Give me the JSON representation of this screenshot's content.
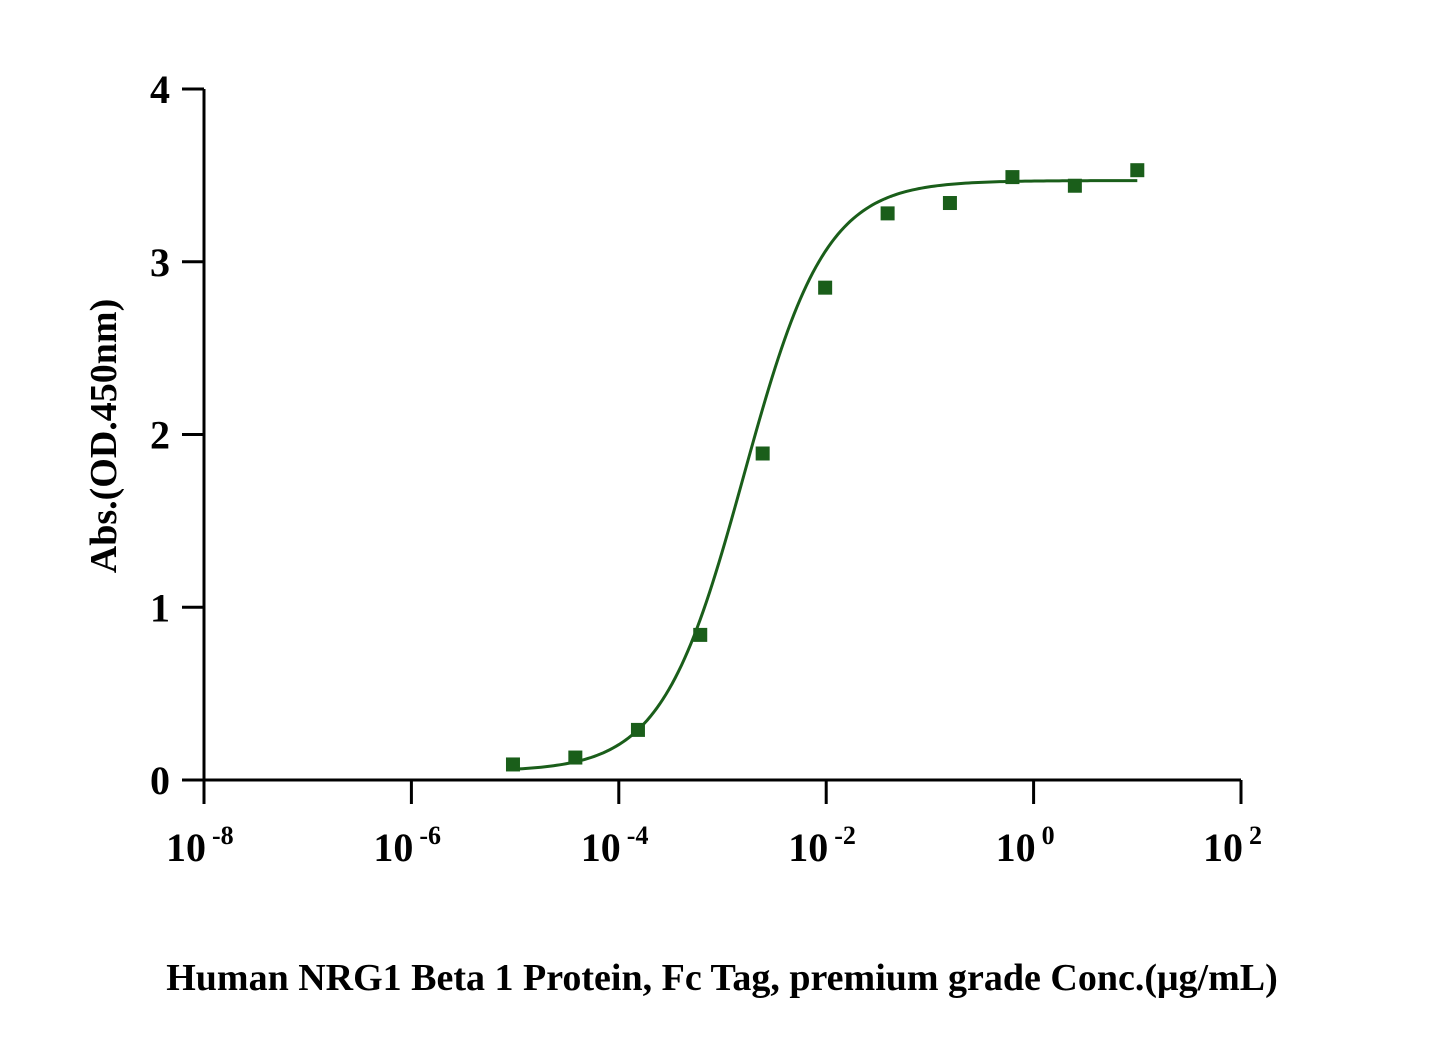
{
  "chart_data": {
    "type": "scatter",
    "title": "",
    "xlabel": "Human NRG1 Beta 1 Protein, Fc Tag, premium grade Conc.(μg/mL)",
    "ylabel": "Abs.(OD.450nm)",
    "x_scale": "log10",
    "xlim": [
      1e-08,
      100
    ],
    "ylim": [
      0,
      4
    ],
    "grid": false,
    "legend": "none",
    "x_ticks": [
      {
        "base": "10",
        "exp": "-8"
      },
      {
        "base": "10",
        "exp": "-6"
      },
      {
        "base": "10",
        "exp": "-4"
      },
      {
        "base": "10",
        "exp": "-2"
      },
      {
        "base": "10",
        "exp": "0"
      },
      {
        "base": "10",
        "exp": "2"
      }
    ],
    "y_ticks": [
      "0",
      "1",
      "2",
      "3",
      "4"
    ],
    "series": [
      {
        "color": "#1a5e1a",
        "marker": "square",
        "points": [
          {
            "x": 9.54e-06,
            "y": 0.09
          },
          {
            "x": 3.81e-05,
            "y": 0.13
          },
          {
            "x": 0.000153,
            "y": 0.29
          },
          {
            "x": 0.00061,
            "y": 0.84
          },
          {
            "x": 0.00244,
            "y": 1.89
          },
          {
            "x": 0.00977,
            "y": 2.85
          },
          {
            "x": 0.0391,
            "y": 3.28
          },
          {
            "x": 0.156,
            "y": 3.34
          },
          {
            "x": 0.625,
            "y": 3.49
          },
          {
            "x": 2.5,
            "y": 3.44
          },
          {
            "x": 10,
            "y": 3.53
          }
        ],
        "fit": {
          "model": "4PL",
          "bottom": 0.05,
          "top": 3.47,
          "ec50": 0.0016,
          "hill": 1.1
        }
      }
    ]
  }
}
